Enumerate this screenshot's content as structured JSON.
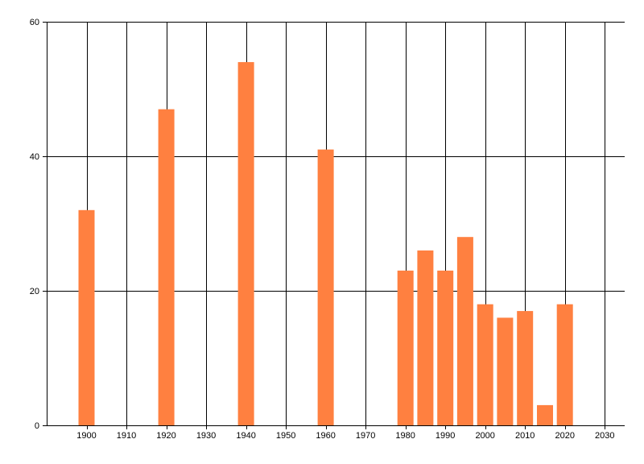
{
  "chart_data": {
    "type": "bar",
    "x": [
      1900,
      1920,
      1940,
      1960,
      1980,
      1985,
      1990,
      1995,
      2000,
      2005,
      2010,
      2015,
      2020
    ],
    "values": [
      32,
      47,
      54,
      41,
      23,
      26,
      23,
      28,
      18,
      16,
      17,
      3,
      18
    ],
    "xlim": [
      1890,
      2035
    ],
    "ylim": [
      0,
      60
    ],
    "x_ticks": [
      1900,
      1910,
      1920,
      1930,
      1940,
      1950,
      1960,
      1970,
      1980,
      1990,
      2000,
      2010,
      2020,
      2030
    ],
    "y_ticks": [
      0,
      20,
      40,
      60
    ],
    "bar_color": "#ff8040",
    "grid": true,
    "title": "",
    "xlabel": "",
    "ylabel": ""
  }
}
